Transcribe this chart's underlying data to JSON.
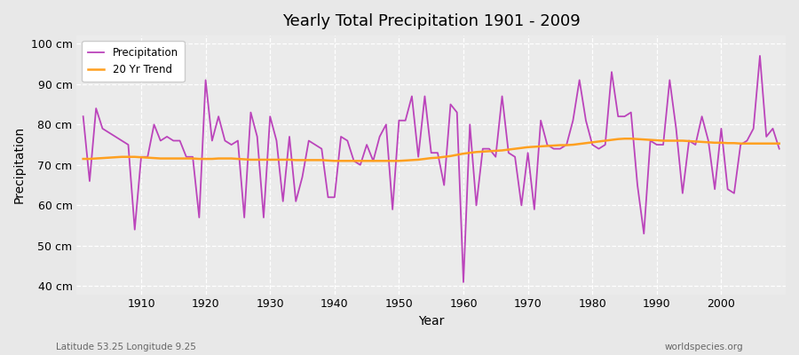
{
  "title": "Yearly Total Precipitation 1901 - 2009",
  "xlabel": "Year",
  "ylabel": "Precipitation",
  "subtitle_left": "Latitude 53.25 Longitude 9.25",
  "subtitle_right": "worldspecies.org",
  "line_color": "#BB44BB",
  "trend_color": "#FFA020",
  "bg_color": "#E8E8E8",
  "plot_bg_color": "#EBEBEB",
  "ylim": [
    38,
    102
  ],
  "yticks": [
    40,
    50,
    60,
    70,
    80,
    90,
    100
  ],
  "years": [
    1901,
    1902,
    1903,
    1904,
    1905,
    1906,
    1907,
    1908,
    1909,
    1910,
    1911,
    1912,
    1913,
    1914,
    1915,
    1916,
    1917,
    1918,
    1919,
    1920,
    1921,
    1922,
    1923,
    1924,
    1925,
    1926,
    1927,
    1928,
    1929,
    1930,
    1931,
    1932,
    1933,
    1934,
    1935,
    1936,
    1937,
    1938,
    1939,
    1940,
    1941,
    1942,
    1943,
    1944,
    1945,
    1946,
    1947,
    1948,
    1949,
    1950,
    1951,
    1952,
    1953,
    1954,
    1955,
    1956,
    1957,
    1958,
    1959,
    1960,
    1961,
    1962,
    1963,
    1964,
    1965,
    1966,
    1967,
    1968,
    1969,
    1970,
    1971,
    1972,
    1973,
    1974,
    1975,
    1976,
    1977,
    1978,
    1979,
    1980,
    1981,
    1982,
    1983,
    1984,
    1985,
    1986,
    1987,
    1988,
    1989,
    1990,
    1991,
    1992,
    1993,
    1994,
    1995,
    1996,
    1997,
    1998,
    1999,
    2000,
    2001,
    2002,
    2003,
    2004,
    2005,
    2006,
    2007,
    2008,
    2009
  ],
  "precip": [
    82,
    66,
    84,
    79,
    78,
    77,
    76,
    75,
    54,
    72,
    72,
    80,
    76,
    77,
    76,
    76,
    72,
    72,
    57,
    91,
    76,
    82,
    76,
    75,
    76,
    57,
    83,
    77,
    57,
    82,
    76,
    61,
    77,
    61,
    67,
    76,
    75,
    74,
    62,
    62,
    77,
    76,
    71,
    70,
    75,
    71,
    77,
    80,
    59,
    81,
    81,
    87,
    72,
    87,
    73,
    73,
    65,
    85,
    83,
    41,
    80,
    60,
    74,
    74,
    72,
    87,
    73,
    72,
    60,
    73,
    59,
    81,
    75,
    74,
    74,
    75,
    81,
    91,
    81,
    75,
    74,
    75,
    93,
    82,
    82,
    83,
    65,
    53,
    76,
    75,
    75,
    91,
    79,
    63,
    76,
    75,
    82,
    76,
    64,
    79,
    64,
    63,
    75,
    76,
    79,
    97,
    77,
    79,
    74
  ],
  "trend": [
    71.5,
    71.5,
    71.6,
    71.7,
    71.8,
    71.9,
    72.0,
    72.0,
    72.0,
    71.9,
    71.8,
    71.7,
    71.6,
    71.6,
    71.6,
    71.6,
    71.6,
    71.6,
    71.5,
    71.5,
    71.5,
    71.6,
    71.6,
    71.6,
    71.5,
    71.4,
    71.3,
    71.3,
    71.3,
    71.3,
    71.3,
    71.3,
    71.3,
    71.2,
    71.2,
    71.2,
    71.2,
    71.2,
    71.1,
    71.0,
    71.0,
    71.0,
    71.0,
    71.0,
    71.0,
    71.0,
    71.0,
    71.0,
    71.0,
    71.0,
    71.1,
    71.2,
    71.3,
    71.5,
    71.7,
    71.8,
    72.0,
    72.2,
    72.5,
    72.8,
    73.0,
    73.2,
    73.3,
    73.4,
    73.5,
    73.6,
    73.8,
    74.0,
    74.2,
    74.4,
    74.5,
    74.6,
    74.7,
    74.8,
    74.9,
    74.9,
    75.0,
    75.2,
    75.4,
    75.6,
    75.8,
    76.0,
    76.2,
    76.4,
    76.5,
    76.5,
    76.4,
    76.3,
    76.2,
    76.1,
    76.0,
    76.0,
    76.0,
    76.0,
    75.9,
    75.8,
    75.7,
    75.6,
    75.5,
    75.5,
    75.4,
    75.4,
    75.3,
    75.3,
    75.3,
    75.3,
    75.3,
    75.3,
    75.3
  ]
}
